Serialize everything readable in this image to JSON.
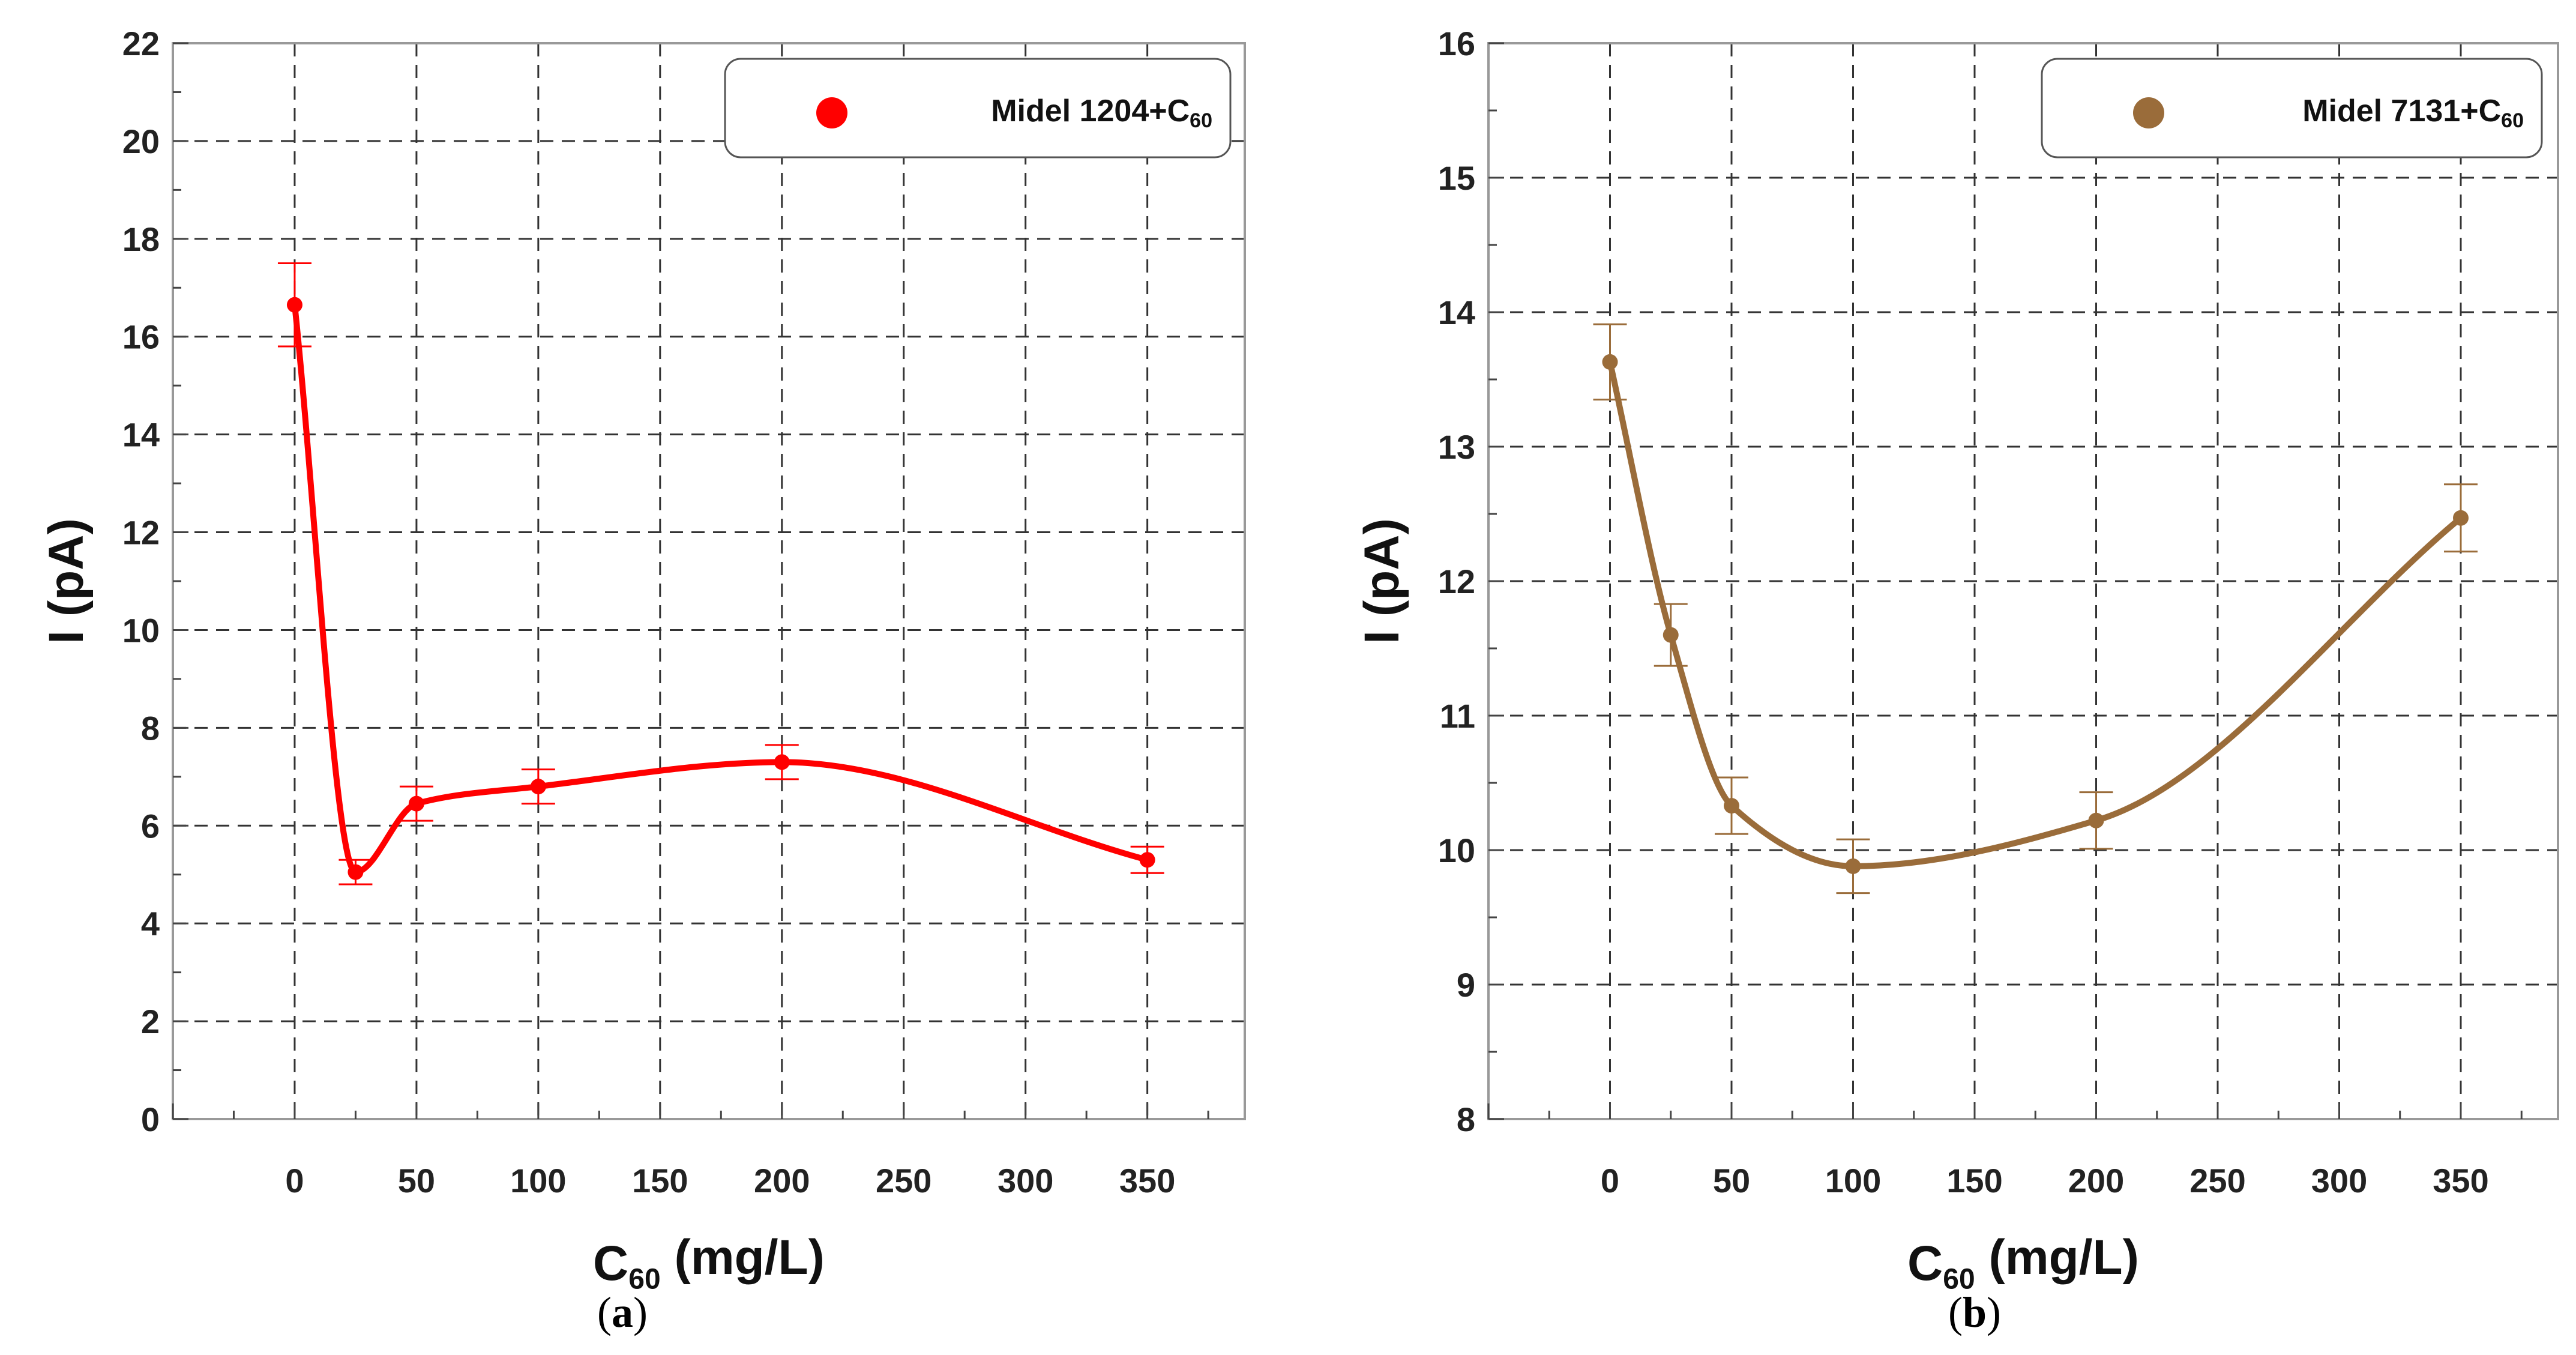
{
  "chart_data": [
    {
      "type": "line",
      "panel_label": "(a)",
      "series": [
        {
          "name": "Midel 1204+C60",
          "legend_base": "Midel 1204+C",
          "legend_sub": "60",
          "color": "#ff0000",
          "x": [
            0,
            25,
            50,
            100,
            200,
            350
          ],
          "values": [
            16.65,
            5.05,
            6.45,
            6.8,
            7.3,
            5.3
          ],
          "errors": [
            0.85,
            0.25,
            0.35,
            0.35,
            0.35,
            0.27
          ]
        }
      ],
      "xlabel_base": "C",
      "xlabel_sub": "60",
      "xlabel_rest": " (mg/L)",
      "ylabel": "I (pA)",
      "xlim": [
        -50,
        390
      ],
      "ylim": [
        0,
        22
      ],
      "xticks": [
        0,
        50,
        100,
        150,
        200,
        250,
        300,
        350
      ],
      "yticks": [
        0,
        2,
        4,
        6,
        8,
        10,
        12,
        14,
        16,
        18,
        20,
        22
      ],
      "grid": true,
      "legend_position": "top-right"
    },
    {
      "type": "line",
      "panel_label": "(b)",
      "series": [
        {
          "name": "Midel 7131+C60",
          "legend_base": "Midel 7131+C",
          "legend_sub": "60",
          "color": "#9a6c3a",
          "x": [
            0,
            25,
            50,
            100,
            200,
            350
          ],
          "values": [
            13.63,
            11.6,
            10.33,
            9.88,
            10.22,
            12.47
          ],
          "errors": [
            0.28,
            0.23,
            0.21,
            0.2,
            0.21,
            0.25
          ]
        }
      ],
      "xlabel_base": "C",
      "xlabel_sub": "60",
      "xlabel_rest": " (mg/L)",
      "ylabel": "I (pA)",
      "xlim": [
        -50,
        390
      ],
      "ylim": [
        8,
        16
      ],
      "xticks": [
        0,
        50,
        100,
        150,
        200,
        250,
        300,
        350
      ],
      "yticks": [
        8,
        9,
        10,
        11,
        12,
        13,
        14,
        15,
        16
      ],
      "grid": true,
      "legend_position": "top-right"
    }
  ]
}
